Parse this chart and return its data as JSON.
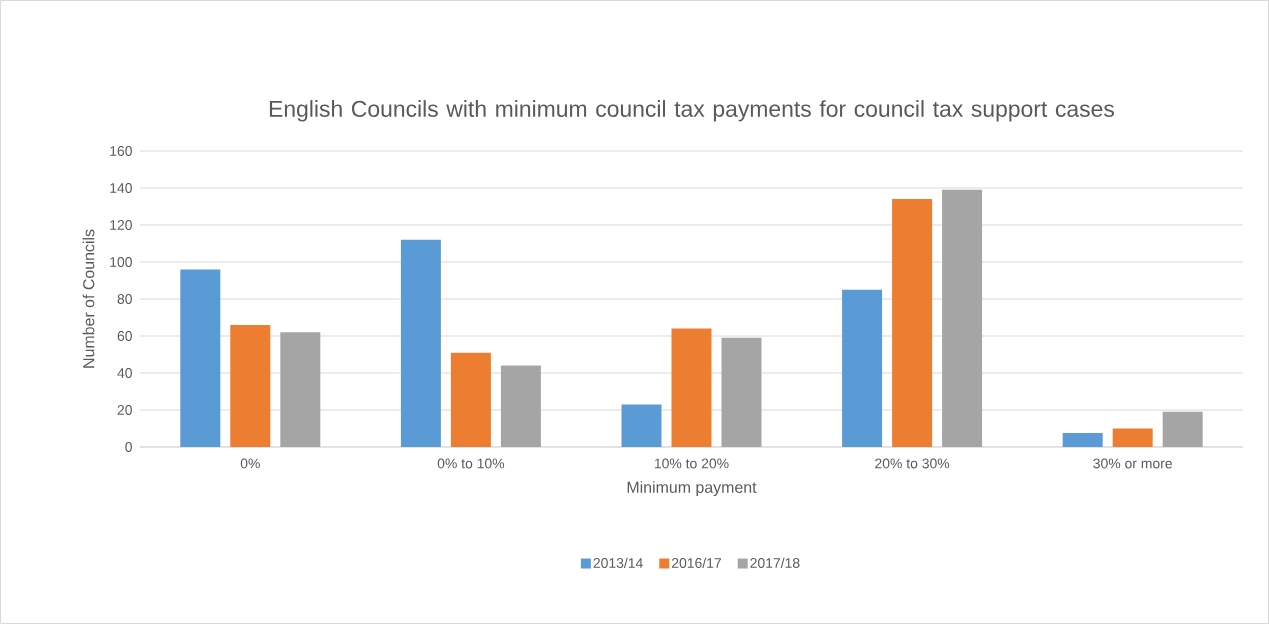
{
  "chart_data": {
    "type": "bar",
    "title": "English Councils with minimum council tax payments for council tax support cases",
    "categories": [
      "0%",
      "0% to 10%",
      "10% to 20%",
      "20% to 30%",
      "30% or more"
    ],
    "series": [
      {
        "name": "2013/14",
        "color": "#5b9bd5",
        "values": [
          96,
          112,
          23,
          85,
          7.5
        ]
      },
      {
        "name": "2016/17",
        "color": "#ed7d31",
        "values": [
          66,
          51,
          64,
          134,
          10
        ]
      },
      {
        "name": "2017/18",
        "color": "#a5a5a5",
        "values": [
          62,
          44,
          59,
          139,
          19
        ]
      }
    ],
    "xlabel": "Minimum payment",
    "ylabel": "Number of Councils",
    "ylim": [
      0,
      160
    ],
    "yticks": [
      0,
      20,
      40,
      60,
      80,
      100,
      120,
      140,
      160
    ],
    "grid": "y",
    "legend": "bottom"
  }
}
